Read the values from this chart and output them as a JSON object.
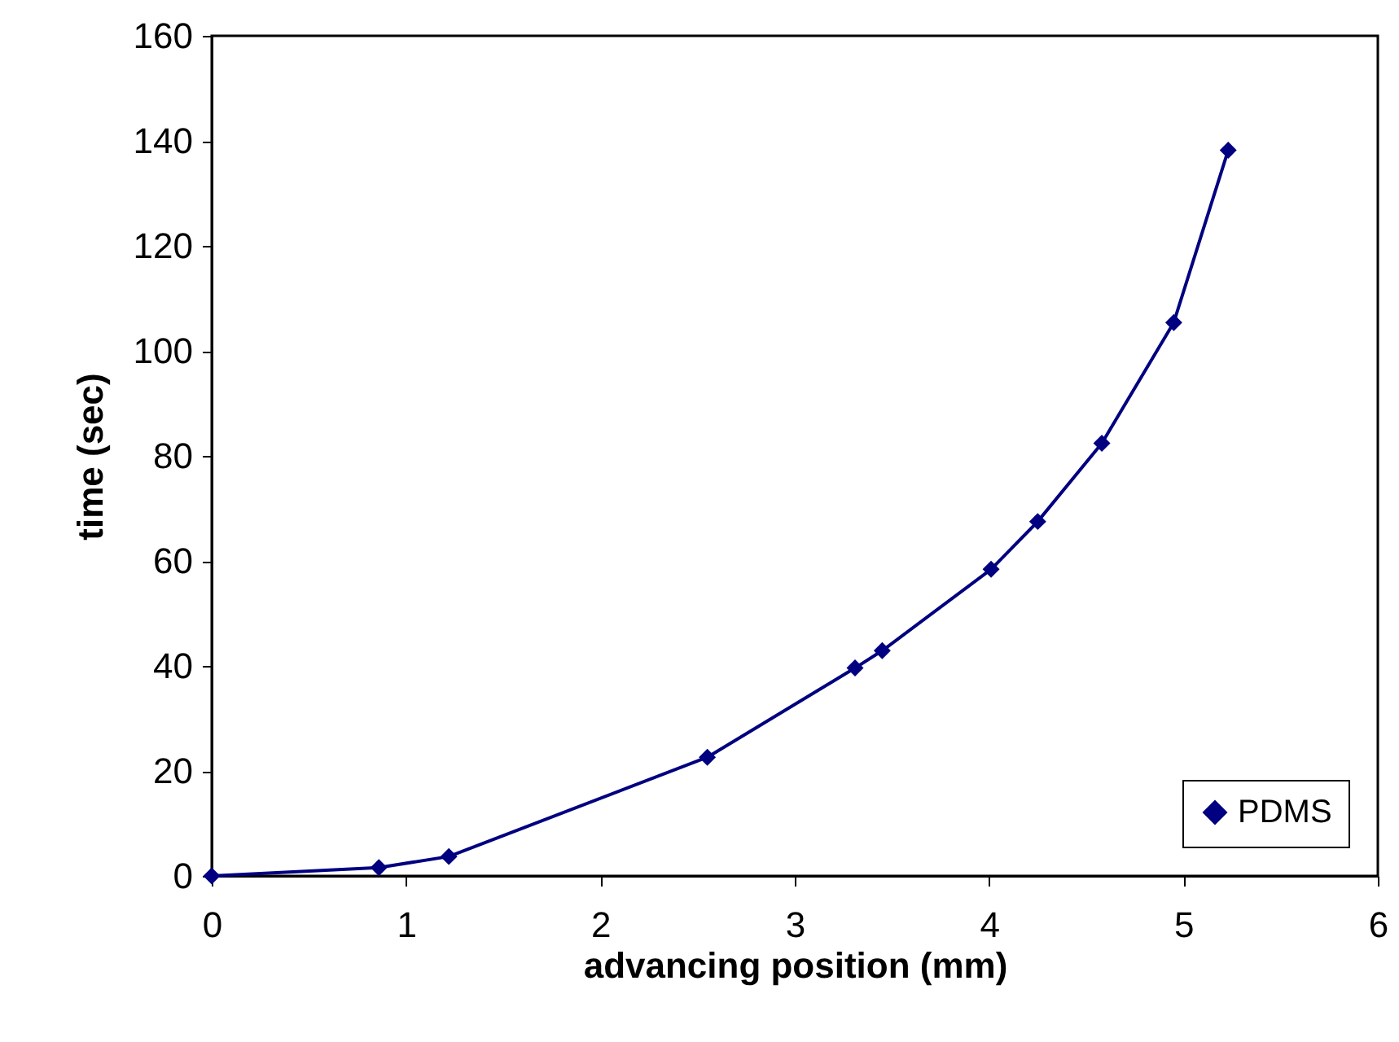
{
  "chart_data": {
    "type": "line",
    "xlabel": "advancing position (mm)",
    "ylabel": "time (sec)",
    "x": [
      0,
      0.86,
      1.22,
      2.55,
      3.31,
      3.45,
      4.01,
      4.25,
      4.58,
      4.95,
      5.23
    ],
    "series": [
      {
        "name": "PDMS",
        "color": "#000080",
        "values": [
          0,
          1.6,
          3.7,
          22.6,
          39.6,
          42.9,
          58.4,
          67.5,
          82.4,
          105.4,
          138.2
        ]
      }
    ],
    "xlim": [
      0,
      6
    ],
    "xticks": [
      0,
      1,
      2,
      3,
      4,
      5,
      6
    ],
    "ylim": [
      0,
      160
    ],
    "yticks": [
      0,
      20,
      40,
      60,
      80,
      100,
      120,
      140,
      160
    ],
    "grid": false,
    "legend": "bottom right",
    "marker": "diamond",
    "line_style": "solid"
  }
}
